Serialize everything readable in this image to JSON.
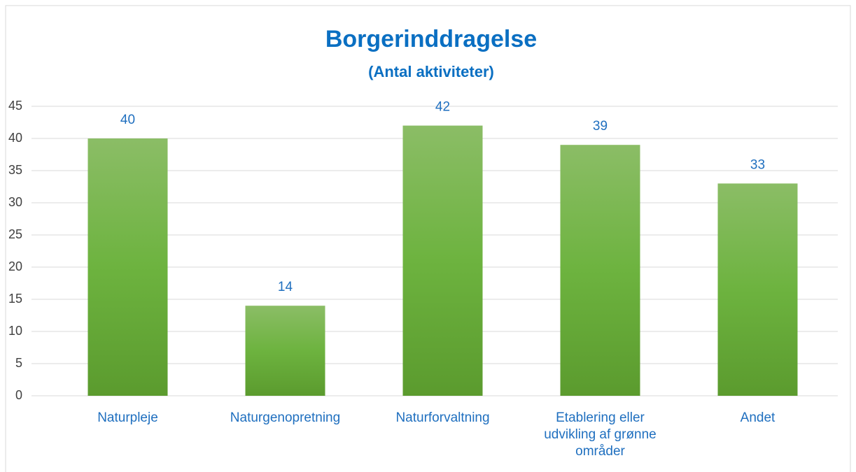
{
  "chart_data": {
    "type": "bar",
    "title": "Borgerinddragelse",
    "subtitle": "(Antal aktiviteter)",
    "categories": [
      "Naturpleje",
      "Naturgenopretning",
      "Naturforvaltning",
      "Etablering eller udvikling af grønne områder",
      "Andet"
    ],
    "values": [
      40,
      14,
      42,
      39,
      33
    ],
    "color": "#6aad3d",
    "ylim": [
      0,
      45
    ],
    "yticks": [
      0,
      5,
      10,
      15,
      20,
      25,
      30,
      35,
      40,
      45
    ],
    "grid": true
  }
}
